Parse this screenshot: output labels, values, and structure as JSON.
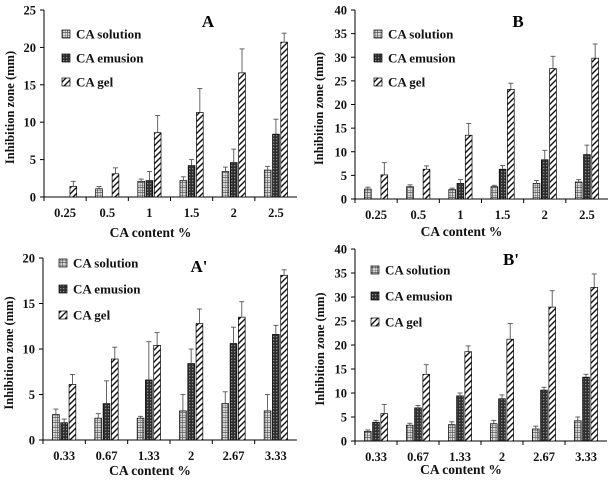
{
  "chart_data": [
    {
      "type": "bar",
      "panel": "A",
      "title": "A",
      "xlabel": "CA content %",
      "ylabel": "Inhibition zone (mm)",
      "ylim": [
        0,
        25
      ],
      "yticks": [
        "0",
        "5",
        "10",
        "15",
        "20",
        "25"
      ],
      "categories": [
        "0.25",
        "0.5",
        "1",
        "1.5",
        "2",
        "2.5"
      ],
      "series": [
        {
          "name": "CA solution",
          "values": [
            0,
            1.1,
            2.1,
            2.2,
            3.4,
            3.6
          ],
          "errors": [
            0,
            0.3,
            0.3,
            0.5,
            0.6,
            0.5
          ]
        },
        {
          "name": "CA emusion",
          "values": [
            0,
            0,
            2.2,
            4.2,
            4.6,
            8.4
          ],
          "errors": [
            0,
            0,
            1.2,
            0.8,
            1.8,
            2.0
          ]
        },
        {
          "name": "CA gel",
          "values": [
            1.4,
            3.1,
            8.6,
            11.3,
            16.6,
            20.7
          ],
          "errors": [
            0.7,
            0.8,
            2.3,
            3.2,
            3.2,
            1.2
          ]
        }
      ]
    },
    {
      "type": "bar",
      "panel": "B",
      "title": "B",
      "xlabel": "CA content %",
      "ylabel": "Inhibition zone (mm)",
      "ylim": [
        0,
        40
      ],
      "yticks": [
        "0",
        "5",
        "10",
        "15",
        "20",
        "25",
        "30",
        "35",
        "40"
      ],
      "categories": [
        "0.25",
        "0.5",
        "1",
        "1.5",
        "2",
        "2.5"
      ],
      "series": [
        {
          "name": "CA solution",
          "values": [
            2.1,
            2.6,
            2.0,
            2.6,
            3.3,
            3.6
          ],
          "errors": [
            0.4,
            0.4,
            0.3,
            0.3,
            0.6,
            0.5
          ]
        },
        {
          "name": "CA emusion",
          "values": [
            0,
            0,
            3.3,
            6.3,
            8.3,
            9.4
          ],
          "errors": [
            0,
            0,
            0.8,
            0.8,
            2.0,
            2.0
          ]
        },
        {
          "name": "CA gel",
          "values": [
            5.1,
            6.3,
            13.5,
            23.2,
            27.6,
            29.8
          ],
          "errors": [
            2.6,
            0.7,
            2.5,
            1.3,
            2.6,
            3.0
          ]
        }
      ]
    },
    {
      "type": "bar",
      "panel": "A'",
      "title": "A'",
      "xlabel": "CA content %",
      "ylabel": "Inhibition zone (mm)",
      "ylim": [
        0,
        20
      ],
      "yticks": [
        "0",
        "5",
        "10",
        "15",
        "20"
      ],
      "categories": [
        "0.33",
        "0.67",
        "1.33",
        "2",
        "2.67",
        "3.33"
      ],
      "series": [
        {
          "name": "CA solution",
          "values": [
            2.8,
            2.4,
            2.4,
            3.2,
            4.0,
            3.2
          ],
          "errors": [
            0.6,
            0.5,
            0.2,
            1.8,
            1.3,
            1.8
          ]
        },
        {
          "name": "CA emusion",
          "values": [
            1.9,
            4.0,
            6.6,
            8.4,
            10.6,
            11.6
          ],
          "errors": [
            0.4,
            2.5,
            4.2,
            1.6,
            1.8,
            1.0
          ]
        },
        {
          "name": "CA gel",
          "values": [
            6.1,
            8.9,
            10.4,
            12.8,
            13.5,
            18.1
          ],
          "errors": [
            1.1,
            1.3,
            1.4,
            1.6,
            1.7,
            0.6
          ]
        }
      ]
    },
    {
      "type": "bar",
      "panel": "B'",
      "title": "B'",
      "xlabel": "CA content %",
      "ylabel": "Inhibition zone (mm)",
      "ylim": [
        0,
        40
      ],
      "yticks": [
        "0",
        "5",
        "10",
        "15",
        "20",
        "25",
        "30",
        "35",
        "40"
      ],
      "categories": [
        "0.33",
        "0.67",
        "1.33",
        "2",
        "2.67",
        "3.33"
      ],
      "series": [
        {
          "name": "CA solution",
          "values": [
            2.0,
            3.3,
            3.4,
            3.6,
            2.5,
            4.2
          ],
          "errors": [
            0.3,
            0.4,
            0.6,
            0.7,
            0.6,
            0.8
          ]
        },
        {
          "name": "CA emusion",
          "values": [
            3.9,
            6.9,
            9.4,
            8.8,
            10.6,
            13.3
          ],
          "errors": [
            0.4,
            0.5,
            0.6,
            0.8,
            0.6,
            0.6
          ]
        },
        {
          "name": "CA gel",
          "values": [
            5.7,
            13.9,
            18.6,
            21.2,
            27.9,
            32.0
          ],
          "errors": [
            1.9,
            2.0,
            1.2,
            3.3,
            3.4,
            2.8
          ]
        }
      ]
    }
  ]
}
